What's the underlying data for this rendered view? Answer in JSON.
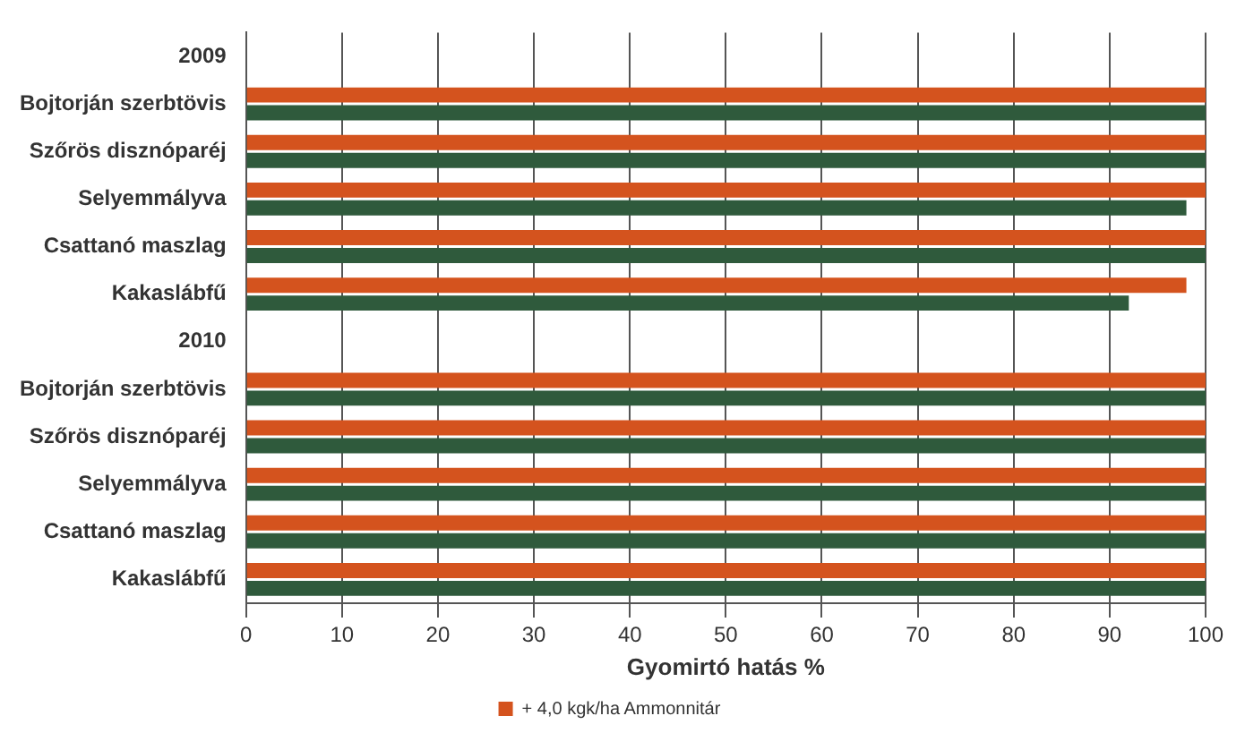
{
  "chart_data": {
    "type": "bar",
    "orientation": "horizontal",
    "xlabel": "Gyomirtó hatás %",
    "categories": [
      "2009",
      "Bojtorján szerbtövis",
      "Szőrös disznóparéj",
      "Selyemmályva",
      "Csattanó maszlag",
      "Kakaslábfű",
      "2010",
      "Bojtorján szerbtövis",
      "Szőrös disznóparéj",
      "Selyemmályva",
      "Csattanó maszlag",
      "Kakaslábfű"
    ],
    "series": [
      {
        "name": "+ 4,0 kgk/ha Ammonnitár",
        "color": "#d4531e",
        "values": [
          null,
          100,
          100,
          100,
          100,
          98,
          null,
          100,
          100,
          100,
          100,
          100
        ]
      },
      {
        "color": "#2f5a3c",
        "values": [
          null,
          100,
          100,
          98,
          100,
          92,
          null,
          100,
          100,
          100,
          100,
          100
        ]
      }
    ],
    "xlim": [
      0,
      100
    ],
    "xticks": [
      0,
      10,
      20,
      30,
      40,
      50,
      60,
      70,
      80,
      90,
      100
    ],
    "grid": "x",
    "legend": "bottom"
  }
}
